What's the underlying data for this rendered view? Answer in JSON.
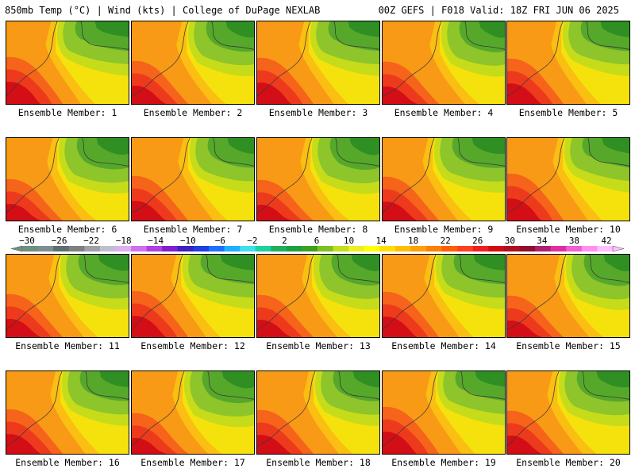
{
  "header": {
    "left": "850mb Temp (°C) | Wind (kts) | College of DuPage NEXLAB",
    "right": "00Z GEFS | F018 Valid: 18Z FRI JUN 06 2025"
  },
  "panels": [
    {
      "label": "Ensemble Member: 1"
    },
    {
      "label": "Ensemble Member: 2"
    },
    {
      "label": "Ensemble Member: 3"
    },
    {
      "label": "Ensemble Member: 4"
    },
    {
      "label": "Ensemble Member: 5"
    },
    {
      "label": "Ensemble Member: 6"
    },
    {
      "label": "Ensemble Member: 7"
    },
    {
      "label": "Ensemble Member: 8"
    },
    {
      "label": "Ensemble Member: 9"
    },
    {
      "label": "Ensemble Member: 10"
    },
    {
      "label": "Ensemble Member: 11"
    },
    {
      "label": "Ensemble Member: 12"
    },
    {
      "label": "Ensemble Member: 13"
    },
    {
      "label": "Ensemble Member: 14"
    },
    {
      "label": "Ensemble Member: 15"
    },
    {
      "label": "Ensemble Member: 16"
    },
    {
      "label": "Ensemble Member: 17"
    },
    {
      "label": "Ensemble Member: 18"
    },
    {
      "label": "Ensemble Member: 19"
    },
    {
      "label": "Ensemble Member: 20"
    }
  ],
  "colorbar": {
    "tick_labels": [
      "−30",
      "−26",
      "−22",
      "−18",
      "−14",
      "−10",
      "−6",
      "−2",
      "2",
      "6",
      "10",
      "14",
      "18",
      "22",
      "26",
      "30",
      "34",
      "38",
      "42"
    ],
    "colors": [
      "#6f8f7f",
      "#7f8f8f",
      "#5f6f6f",
      "#7f7f7f",
      "#9f9fa8",
      "#bfbfcf",
      "#dfafef",
      "#cf6fef",
      "#af3fdf",
      "#7f1fcf",
      "#3f1fbf",
      "#1f3fdf",
      "#1f6fff",
      "#1fafff",
      "#3fdfef",
      "#1fcf9f",
      "#1faf5f",
      "#1f9f3f",
      "#3f9f1f",
      "#7fbf1f",
      "#bfdf1f",
      "#efef1f",
      "#ffff00",
      "#ffdf00",
      "#ffbf00",
      "#ff9f00",
      "#ff7f00",
      "#ff5f00",
      "#ff3f1f",
      "#ef1f1f",
      "#cf0f0f",
      "#af0f1f",
      "#8f0f2f",
      "#af1f6f",
      "#df2f9f",
      "#ef5fcf",
      "#ff8fef",
      "#ffbfff"
    ]
  },
  "map_colors": {
    "deep_red": "#d40e16",
    "red": "#ee3a1c",
    "orange_red": "#f5641a",
    "orange": "#f89a15",
    "light_orange": "#fbbe12",
    "yellow": "#f5e20c",
    "yellow_green": "#c6dc1a",
    "light_green": "#8dc52b",
    "green": "#56a82a",
    "dark_green": "#2f8f23"
  }
}
